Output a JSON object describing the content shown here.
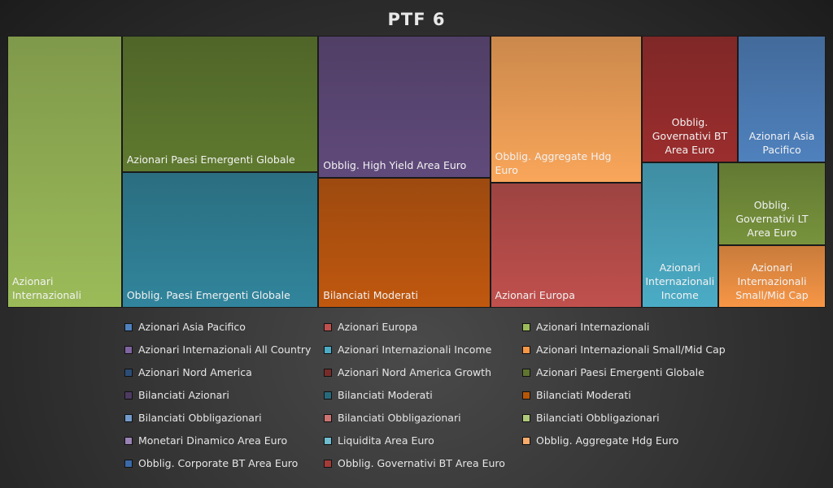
{
  "chart_data": {
    "type": "treemap",
    "title": "PTF 6",
    "unit": "% share (estimated from area)",
    "items": [
      {
        "label": "Azionari Internazionali",
        "value": 14,
        "color": "#9bbb59"
      },
      {
        "label": "Azionari Paesi Emergenti Globale",
        "value": 12,
        "color": "#5f7a2f"
      },
      {
        "label": "Obblig. Paesi Emergenti Globale",
        "value": 12,
        "color": "#31859c"
      },
      {
        "label": "Obblig. High Yield Area Euro",
        "value": 11,
        "color": "#604a7b"
      },
      {
        "label": "Bilanciati Moderati",
        "value": 10,
        "color": "#c0580f"
      },
      {
        "label": "Obblig. Aggregate Hdg Euro",
        "value": 10,
        "color": "#f9a65a"
      },
      {
        "label": "Azionari Europa",
        "value": 8.5,
        "color": "#c0504d"
      },
      {
        "label": "Obblig. Governativi BT Area Euro",
        "value": 5.5,
        "color": "#9b2d2d"
      },
      {
        "label": "Azionari Asia Pacifico",
        "value": 5,
        "color": "#4f81bd"
      },
      {
        "label": "Azionari Internazionali Income",
        "value": 5,
        "color": "#4bacc6"
      },
      {
        "label": "Obblig. Governativi LT Area Euro",
        "value": 4,
        "color": "#77933c"
      },
      {
        "label": "Azionari Internazionali Small/Mid Cap",
        "value": 3,
        "color": "#f79646"
      }
    ],
    "legend_position": "bottom",
    "legend": [
      {
        "label": "Azionari Asia Pacifico",
        "color": "#4f81bd"
      },
      {
        "label": "Azionari Europa",
        "color": "#c0504d"
      },
      {
        "label": "Azionari Internazionali",
        "color": "#9bbb59"
      },
      {
        "label": "Azionari Internazionali All Country",
        "color": "#8064a2"
      },
      {
        "label": "Azionari Internazionali Income",
        "color": "#4bacc6"
      },
      {
        "label": "Azionari Internazionali Small/Mid Cap",
        "color": "#f79646"
      },
      {
        "label": "Azionari Nord America",
        "color": "#2c4d75"
      },
      {
        "label": "Azionari Nord America Growth",
        "color": "#772c2a"
      },
      {
        "label": "Azionari Paesi Emergenti Globale",
        "color": "#5f7530"
      },
      {
        "label": "Bilanciati Azionari",
        "color": "#4d3b62"
      },
      {
        "label": "Bilanciati Moderati",
        "color": "#276a7c"
      },
      {
        "label": "Bilanciati Moderati",
        "color": "#b65708"
      },
      {
        "label": "Bilanciati Obbligazionari",
        "color": "#729aca"
      },
      {
        "label": "Bilanciati Obbligazionari",
        "color": "#cd7371"
      },
      {
        "label": "Bilanciati Obbligazionari",
        "color": "#afc97a"
      },
      {
        "label": "Monetari Dinamico Area Euro",
        "color": "#9983b5"
      },
      {
        "label": "Liquidita Area Euro",
        "color": "#6fbdd1"
      },
      {
        "label": "Obblig. Aggregate Hdg Euro",
        "color": "#f9ab6b"
      },
      {
        "label": "Obblig. Corporate BT Area Euro",
        "color": "#3a6aa8"
      },
      {
        "label": "Obblig. Governativi BT Area Euro",
        "color": "#a33b38"
      }
    ]
  }
}
